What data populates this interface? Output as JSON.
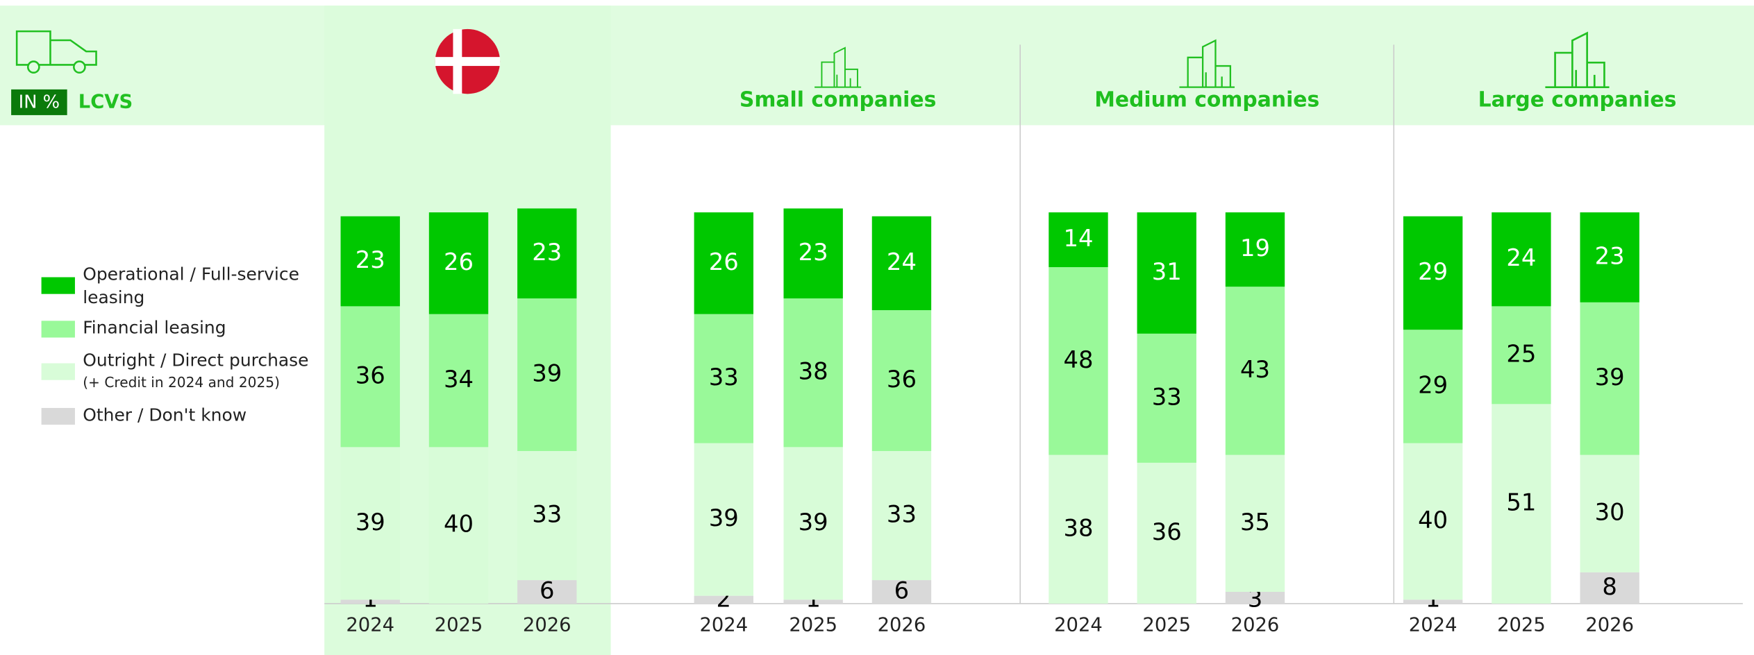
{
  "chart_data": {
    "type": "stacked_bar",
    "unit_badge": "IN %",
    "vehicle_label": "LCVS",
    "ylim": [
      0,
      100
    ],
    "legend": [
      {
        "name": "Operational / Full-service leasing",
        "color": "#00c800",
        "text_color": "#ffffff"
      },
      {
        "name": "Financial leasing",
        "color": "#99f999",
        "text_color": "#000000"
      },
      {
        "name": "Outright / Direct purchase",
        "note": "(+ Credit in 2024 and 2025)",
        "color": "#d8fcd8",
        "text_color": "#000000"
      },
      {
        "name": "Other / Don't know",
        "color": "#d9d9d9",
        "text_color": "#000000"
      }
    ],
    "groups": [
      {
        "categories": [
          "2024",
          "2025",
          "2026"
        ],
        "series": [
          {
            "values": [
              23,
              26,
              23
            ]
          },
          {
            "values": [
              36,
              34,
              39
            ]
          },
          {
            "values": [
              39,
              40,
              33
            ]
          },
          {
            "values": [
              1,
              null,
              6
            ]
          }
        ]
      },
      {
        "name": "Small companies",
        "categories": [
          "2024",
          "2025",
          "2026"
        ],
        "series": [
          {
            "values": [
              26,
              23,
              24
            ]
          },
          {
            "values": [
              33,
              38,
              36
            ]
          },
          {
            "values": [
              39,
              39,
              33
            ]
          },
          {
            "values": [
              2,
              1,
              6
            ]
          }
        ]
      },
      {
        "name": "Medium companies",
        "categories": [
          "2024",
          "2025",
          "2026"
        ],
        "series": [
          {
            "values": [
              14,
              31,
              19
            ]
          },
          {
            "values": [
              48,
              33,
              43
            ]
          },
          {
            "values": [
              38,
              36,
              35
            ]
          },
          {
            "values": [
              null,
              null,
              3
            ]
          }
        ]
      },
      {
        "name": "Large companies",
        "categories": [
          "2024",
          "2025",
          "2026"
        ],
        "series": [
          {
            "values": [
              29,
              24,
              23
            ]
          },
          {
            "values": [
              29,
              25,
              39
            ]
          },
          {
            "values": [
              40,
              51,
              30
            ]
          },
          {
            "values": [
              1,
              null,
              8
            ]
          }
        ]
      }
    ]
  }
}
